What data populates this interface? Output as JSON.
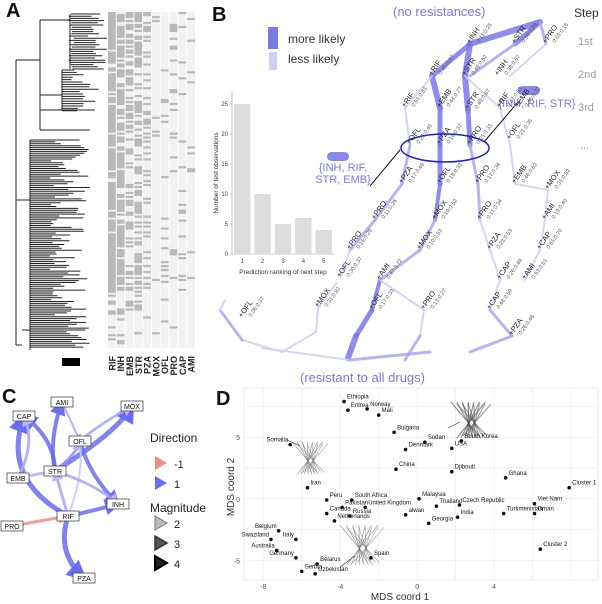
{
  "panels": {
    "a": "A",
    "b": "B",
    "c": "C",
    "d": "D"
  },
  "panel_a": {
    "heatmap_columns": [
      "RIF",
      "INH",
      "EMB",
      "STR",
      "PZA",
      "MOX",
      "OFL",
      "PRO",
      "CAP",
      "AMI"
    ]
  },
  "panel_b": {
    "legend_more": "more likely",
    "legend_less": "less likely",
    "top_label": "(no resistances)",
    "bottom_label": "(resistant to all drugs)",
    "steps_header": "Step",
    "steps": [
      "1st",
      "2nd",
      "3rd",
      "..."
    ],
    "callout_left": [
      "{INH, RIF,",
      "STR, EMB}"
    ],
    "callout_right": "{INH, RIF, STR}",
    "nodes": [
      {
        "id": "n1",
        "label": "+INH",
        "sub": "0.11:0.25"
      },
      {
        "id": "n2",
        "label": "+STR",
        "sub": "0.50:0.59"
      },
      {
        "id": "n3",
        "label": "+PRO",
        "sub": "0.01:0.16"
      },
      {
        "id": "n4",
        "label": "+RIF",
        "sub": "0.45:0.67"
      },
      {
        "id": "n5",
        "label": "+STR",
        "sub": "0.46:0.52"
      },
      {
        "id": "n6",
        "label": "+INH",
        "sub": "0.38:0.67"
      },
      {
        "id": "n7",
        "label": "+RIF",
        "sub": "0.51:0.61"
      },
      {
        "id": "n8",
        "label": "+EMB",
        "sub": "0.44:0.77"
      },
      {
        "id": "n9",
        "label": "+STR",
        "sub": "0.49:0.67"
      },
      {
        "id": "n10",
        "label": "+RIF",
        "sub": "0.47:0.63"
      },
      {
        "id": "n11",
        "label": "+EMB",
        "sub": "0.46:0.72"
      },
      {
        "id": "n12",
        "label": "+OFL",
        "sub": "0.21:0.45"
      },
      {
        "id": "n13",
        "label": "+PZA",
        "sub": "0.16:0.37"
      },
      {
        "id": "n14",
        "label": "+PRO",
        "sub": "0.21:0.33"
      },
      {
        "id": "n15",
        "label": "+PZA",
        "sub": "0.17:0.48"
      },
      {
        "id": "n16",
        "label": "+OFL",
        "sub": "0.18:0.33"
      },
      {
        "id": "n17",
        "label": "+PRO",
        "sub": "0.17:0.34"
      },
      {
        "id": "n18",
        "label": "+EMB",
        "sub": "0.46:0.62"
      },
      {
        "id": "n19",
        "label": "+PRO",
        "sub": "0.11:0.26"
      },
      {
        "id": "n20",
        "label": "+MOX",
        "sub": "0.19:0.52"
      },
      {
        "id": "n21",
        "label": "+OFL",
        "sub": "0.21:0.35"
      },
      {
        "id": "n22",
        "label": "+PRO",
        "sub": "0.11:0.34"
      },
      {
        "id": "n23",
        "label": "+MOX",
        "sub": "0.31:0.82"
      },
      {
        "id": "n24",
        "label": "+PRO",
        "sub": "0.16:0.29"
      },
      {
        "id": "n25",
        "label": "+MOX",
        "sub": "0.10:0.53"
      },
      {
        "id": "n26",
        "label": "+PZA",
        "sub": "0.23:0.53"
      },
      {
        "id": "n27",
        "label": "+AMI",
        "sub": "0.19:0.40"
      },
      {
        "id": "n28",
        "label": "+OFL",
        "sub": "0.30:0.37"
      },
      {
        "id": "n29",
        "label": "+AMI",
        "sub": "0.47:0.72"
      },
      {
        "id": "n30",
        "label": "+CAP",
        "sub": "0.26:0.49"
      },
      {
        "id": "n31",
        "label": "+CAP",
        "sub": "0.61:0.70"
      },
      {
        "id": "n32",
        "label": "+MOX",
        "sub": "0.31:0.82"
      },
      {
        "id": "n33",
        "label": "+OFL",
        "sub": "0.17:0.33"
      },
      {
        "id": "n34",
        "label": "+PRO",
        "sub": "0.13:0.27"
      },
      {
        "id": "n35",
        "label": "+CAP",
        "sub": "0.48:0.59"
      },
      {
        "id": "n36",
        "label": "+AMI",
        "sub": "0.53:0.61"
      },
      {
        "id": "n37",
        "label": "+PZA",
        "sub": "0.26:0.48"
      },
      {
        "id": "n38",
        "label": "+OFL",
        "sub": "0.06:0.37"
      }
    ]
  },
  "chart_data": {
    "type": "bar",
    "categories": [
      "1",
      "2",
      "3",
      "4",
      "5"
    ],
    "values": [
      25,
      10,
      5,
      6,
      4
    ],
    "xlabel": "Prediction ranking of next step",
    "ylabel": "Number of test observations",
    "ylim": [
      0,
      27
    ],
    "yticks": [
      0,
      5,
      10,
      15,
      20,
      25
    ]
  },
  "panel_c": {
    "nodes": [
      "AMI",
      "MOX",
      "CAP",
      "OFL",
      "STR",
      "EMB",
      "INH",
      "RIF",
      "PRO",
      "PZA"
    ],
    "direction_title": "Direction",
    "direction_items": [
      {
        "label": "-1",
        "color": "#f28b8b"
      },
      {
        "label": "1",
        "color": "#6b6cf0"
      }
    ],
    "magnitude_title": "Magnitude",
    "magnitude_items": [
      "2",
      "3",
      "4"
    ]
  },
  "panel_d": {
    "xlabel": "MDS coord 1",
    "ylabel": "MDS coord 2",
    "xticks": [
      "-8",
      "-4",
      "0",
      "4"
    ],
    "yticks": [
      "5",
      "0",
      "-5"
    ],
    "points": [
      {
        "name": "Ethiopia",
        "x": -3.8,
        "y": 7.9
      },
      {
        "name": "Eritrea",
        "x": -3.6,
        "y": 7.2
      },
      {
        "name": "Norway",
        "x": -2.6,
        "y": 7.3
      },
      {
        "name": "Mali",
        "x": -2.0,
        "y": 6.8
      },
      {
        "name": "Somalia",
        "x": -6.6,
        "y": 4.4
      },
      {
        "name": "Bulgaria",
        "x": -1.2,
        "y": 5.4
      },
      {
        "name": "Sudan",
        "x": 0.4,
        "y": 4.6
      },
      {
        "name": "Denmark",
        "x": -0.6,
        "y": 4.0
      },
      {
        "name": "South Korea",
        "x": 2.3,
        "y": 4.7
      },
      {
        "name": "USA",
        "x": 1.8,
        "y": 4.1
      },
      {
        "name": "China",
        "x": -1.1,
        "y": 2.4
      },
      {
        "name": "Djibouti",
        "x": 1.8,
        "y": 2.2
      },
      {
        "name": "Ghana",
        "x": 4.6,
        "y": 1.7
      },
      {
        "name": "Cluster 1",
        "x": 7.9,
        "y": 0.9
      },
      {
        "name": "Iran",
        "x": -5.7,
        "y": 0.9
      },
      {
        "name": "Peru",
        "x": -4.7,
        "y": -0.1
      },
      {
        "name": "South Africa",
        "x": -3.4,
        "y": -0.1
      },
      {
        "name": "Pakistan",
        "x": -3.9,
        "y": -0.7
      },
      {
        "name": "United Kingdom",
        "x": -2.7,
        "y": -0.7
      },
      {
        "name": "Malaysia",
        "x": 0.1,
        "y": 0.0
      },
      {
        "name": "Thailand",
        "x": 1.0,
        "y": -0.6
      },
      {
        "name": "Czech Republic",
        "x": 2.2,
        "y": -0.5
      },
      {
        "name": "Viet Nam",
        "x": 6.1,
        "y": -0.4
      },
      {
        "name": "Turkmenistan",
        "x": 4.5,
        "y": -1.2
      },
      {
        "name": "Oman",
        "x": 6.1,
        "y": -1.2
      },
      {
        "name": "Canada",
        "x": -4.7,
        "y": -1.2
      },
      {
        "name": "Russia",
        "x": -3.5,
        "y": -1.4
      },
      {
        "name": "Netherlands",
        "x": -4.3,
        "y": -1.8
      },
      {
        "name": "alwan",
        "x": -0.6,
        "y": -1.3
      },
      {
        "name": "India",
        "x": 2.1,
        "y": -1.5
      },
      {
        "name": "Georgia",
        "x": 0.6,
        "y": -2.0
      },
      {
        "name": "Belgium",
        "x": -7.2,
        "y": -2.6
      },
      {
        "name": "Swaziland",
        "x": -7.6,
        "y": -3.3
      },
      {
        "name": "Italy",
        "x": -6.3,
        "y": -3.3
      },
      {
        "name": "Australia",
        "x": -7.3,
        "y": -4.2
      },
      {
        "name": "Germany",
        "x": -6.3,
        "y": -4.8
      },
      {
        "name": "Belarus",
        "x": -5.2,
        "y": -5.3
      },
      {
        "name": "Serbia",
        "x": -6.0,
        "y": -5.9
      },
      {
        "name": "Uzbekistan",
        "x": -5.3,
        "y": -6.1
      },
      {
        "name": "Spain",
        "x": -2.4,
        "y": -4.8
      },
      {
        "name": "Cluster 2",
        "x": 6.4,
        "y": -4.1
      }
    ]
  },
  "colors": {
    "accent": "#7b78e8",
    "accent_light": "#c9c8f4",
    "pink": "#f28b8b",
    "grid": "#e6e6e6",
    "bar": "#dcdcdc"
  }
}
